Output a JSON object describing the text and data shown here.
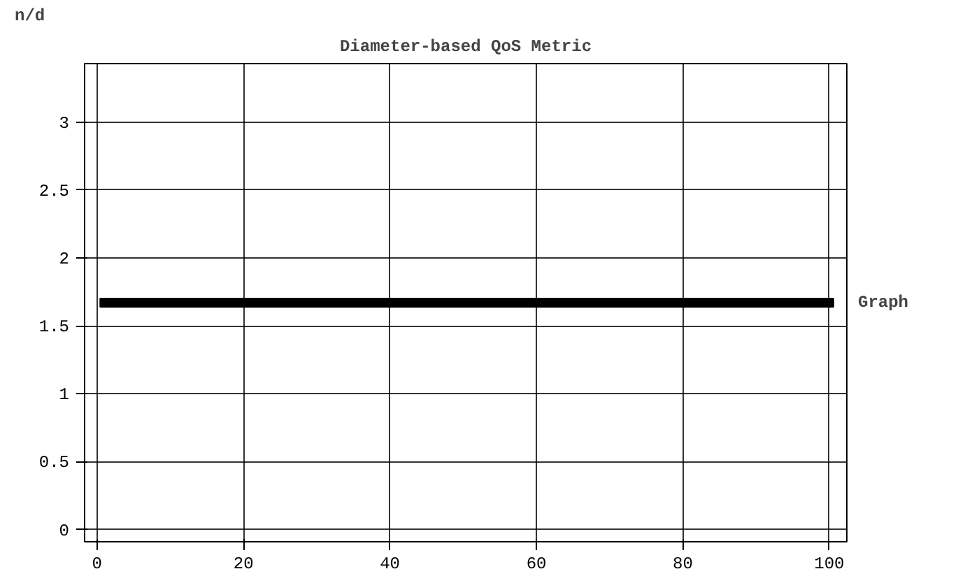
{
  "chart_data": {
    "type": "scatter",
    "title": "Diameter-based QoS Metric",
    "xlabel": "Graph",
    "ylabel": "n/d",
    "x": [
      1,
      2,
      3,
      4,
      5,
      6,
      7,
      8,
      9,
      10,
      11,
      12,
      13,
      14,
      15,
      16,
      17,
      18,
      19,
      20,
      21,
      22,
      23,
      24,
      25,
      26,
      27,
      28,
      29,
      30,
      31,
      32,
      33,
      34,
      35,
      36,
      37,
      38,
      39,
      40,
      41,
      42,
      43,
      44,
      45,
      46,
      47,
      48,
      49,
      50,
      51,
      52,
      53,
      54,
      55,
      56,
      57,
      58,
      59,
      60,
      61,
      62,
      63,
      64,
      65,
      66,
      67,
      68,
      69,
      70,
      71,
      72,
      73,
      74,
      75,
      76,
      77,
      78,
      79,
      80,
      81,
      82,
      83,
      84,
      85,
      86,
      87,
      88,
      89,
      90,
      91,
      92,
      93,
      94,
      95,
      96,
      97,
      98,
      99,
      100
    ],
    "values": [
      1.67,
      1.67,
      1.67,
      1.67,
      1.67,
      1.67,
      1.67,
      1.67,
      1.67,
      1.67,
      1.67,
      1.67,
      1.67,
      1.67,
      1.67,
      1.67,
      1.67,
      1.67,
      1.67,
      1.67,
      1.67,
      1.67,
      1.67,
      1.67,
      1.67,
      1.67,
      1.67,
      1.67,
      1.67,
      1.67,
      1.67,
      1.67,
      1.67,
      1.67,
      1.67,
      1.67,
      1.67,
      1.67,
      1.67,
      1.67,
      1.67,
      1.67,
      1.67,
      1.67,
      1.67,
      1.67,
      1.67,
      1.67,
      1.67,
      1.67,
      1.67,
      1.67,
      1.67,
      1.67,
      1.67,
      1.67,
      1.67,
      1.67,
      1.67,
      1.67,
      1.67,
      1.67,
      1.67,
      1.67,
      1.67,
      1.67,
      1.67,
      1.67,
      1.67,
      1.67,
      1.67,
      1.67,
      1.67,
      1.67,
      1.67,
      1.67,
      1.67,
      1.67,
      1.67,
      1.67,
      1.67,
      1.67,
      1.67,
      1.67,
      1.67,
      1.67,
      1.67,
      1.67,
      1.67,
      1.67,
      1.67,
      1.67,
      1.67,
      1.67,
      1.67,
      1.67,
      1.67,
      1.67,
      1.67,
      1.67
    ],
    "color": "#000000",
    "marker": "square",
    "grid": true,
    "xlim": [
      -1.7,
      102.4
    ],
    "ylim": [
      -0.09,
      3.43
    ],
    "xticks": [
      0,
      20,
      40,
      60,
      80,
      100
    ],
    "yticks": [
      0,
      {
        "value": 0.5,
        "label": "0.5"
      },
      1,
      {
        "value": 1.5,
        "label": "1.5"
      },
      2,
      {
        "value": 2.5,
        "label": "2.5"
      },
      3
    ]
  }
}
